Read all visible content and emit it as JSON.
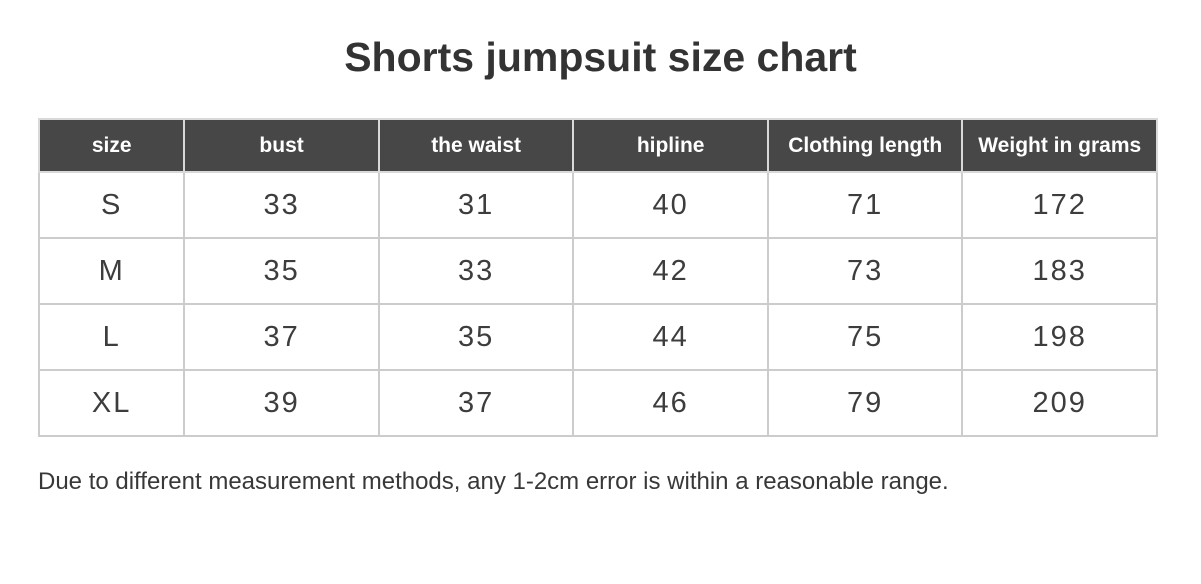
{
  "chart_data": {
    "type": "table",
    "title": "Shorts jumpsuit size chart",
    "columns": [
      "size",
      "bust",
      "the waist",
      "hipline",
      "Clothing length",
      "Weight in grams"
    ],
    "rows": [
      [
        "S",
        "33",
        "31",
        "40",
        "71",
        "172"
      ],
      [
        "M",
        "35",
        "33",
        "42",
        "73",
        "183"
      ],
      [
        "L",
        "37",
        "35",
        "44",
        "75",
        "198"
      ],
      [
        "XL",
        "39",
        "37",
        "46",
        "79",
        "209"
      ]
    ],
    "note": "Due to different measurement methods, any 1-2cm error is within a reasonable range.",
    "layout": {
      "grid": "on",
      "header_position": "top"
    }
  },
  "colors": {
    "header_bg": "#474747",
    "header_text": "#ffffff",
    "body_text": "#3d3d3d",
    "grid_line": "#cccccc",
    "page_bg": "#ffffff"
  }
}
